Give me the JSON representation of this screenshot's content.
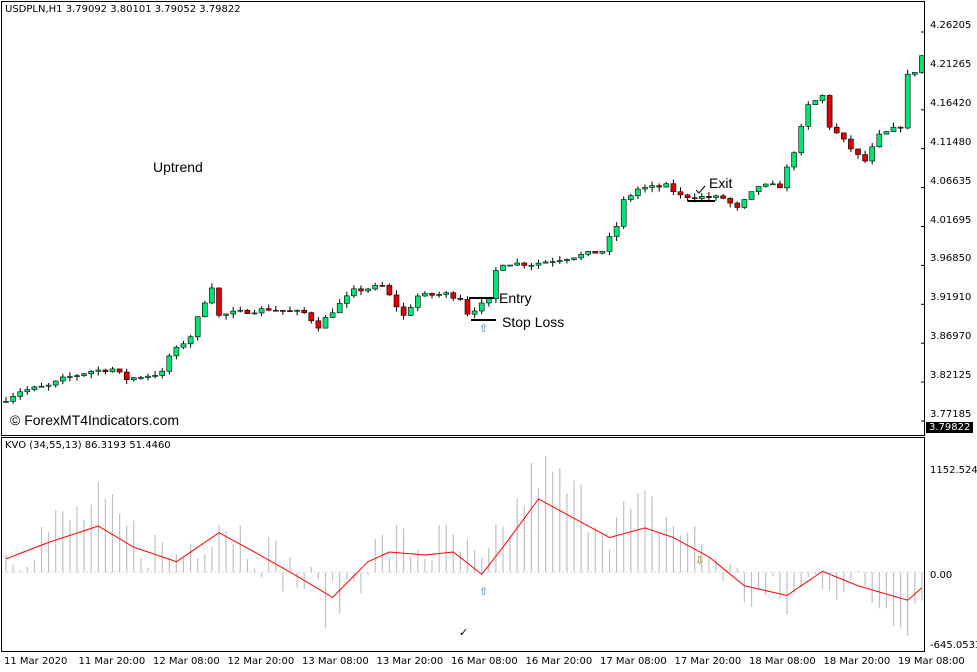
{
  "main_header": "USDPLN,H1  3.79092 3.80101 3.79052 3.79822",
  "indicator_header": "KVO (34,55,13)  86.3193 51.4460",
  "watermark": "© ForexMT4Indicators.com",
  "annotations": {
    "uptrend": "Uptrend",
    "entry": "Entry",
    "stop_loss": "Stop Loss",
    "exit": "Exit"
  },
  "price_axis": [
    "4.26205",
    "4.21265",
    "4.16420",
    "4.11480",
    "4.06635",
    "4.01695",
    "3.96850",
    "3.91910",
    "3.86970",
    "3.82125",
    "3.77185"
  ],
  "current_price": "3.79822",
  "indicator_axis": {
    "max": "1152.5245",
    "zero": "0.00",
    "min": "-645.0533"
  },
  "time_axis": [
    "11 Mar 2020",
    "11 Mar 20:00",
    "12 Mar 08:00",
    "12 Mar 20:00",
    "13 Mar 08:00",
    "13 Mar 20:00",
    "16 Mar 08:00",
    "16 Mar 20:00",
    "17 Mar 08:00",
    "17 Mar 20:00",
    "18 Mar 08:00",
    "18 Mar 20:00",
    "19 Mar 08:00"
  ],
  "colors": {
    "bull": "#00e676",
    "bear": "#e00000",
    "signal": "#ff0000",
    "histogram": "#c0c0c0"
  },
  "chart_data": {
    "type": "candlestick",
    "bars": 130,
    "price_range": [
      3.77185,
      4.26205
    ],
    "close_anchors": [
      [
        0,
        3.7996
      ],
      [
        2,
        3.8097
      ],
      [
        6,
        3.816
      ],
      [
        8,
        3.8248
      ],
      [
        12,
        3.8349
      ],
      [
        15,
        3.8374
      ],
      [
        17,
        3.8248
      ],
      [
        22,
        3.8324
      ],
      [
        23,
        3.8538
      ],
      [
        26,
        3.879
      ],
      [
        28,
        3.9231
      ],
      [
        29,
        3.942
      ],
      [
        30,
        3.9042
      ],
      [
        32,
        3.908
      ],
      [
        37,
        3.913
      ],
      [
        42,
        3.908
      ],
      [
        44,
        3.8916
      ],
      [
        46,
        3.9105
      ],
      [
        49,
        3.9357
      ],
      [
        53,
        3.942
      ],
      [
        55,
        3.9168
      ],
      [
        56,
        3.9042
      ],
      [
        58,
        3.9294
      ],
      [
        62,
        3.9319
      ],
      [
        64,
        3.9269
      ],
      [
        65,
        3.908
      ],
      [
        68,
        3.9231
      ],
      [
        69,
        3.9609
      ],
      [
        70,
        3.971
      ],
      [
        74,
        3.9697
      ],
      [
        78,
        3.976
      ],
      [
        84,
        3.9861
      ],
      [
        86,
        4.0176
      ],
      [
        87,
        4.0491
      ],
      [
        89,
        4.0642
      ],
      [
        93,
        4.068
      ],
      [
        95,
        4.0554
      ],
      [
        101,
        4.0529
      ],
      [
        103,
        4.039
      ],
      [
        106,
        4.068
      ],
      [
        109,
        4.068
      ],
      [
        111,
        4.1121
      ],
      [
        113,
        4.1688
      ],
      [
        115,
        4.1814
      ],
      [
        116,
        4.1436
      ],
      [
        118,
        4.1247
      ],
      [
        120,
        4.1058
      ],
      [
        121,
        4.0995
      ],
      [
        123,
        4.131
      ],
      [
        126,
        4.1436
      ],
      [
        127,
        4.2066
      ],
      [
        128,
        4.2129
      ],
      [
        129,
        4.2318
      ]
    ],
    "kvo_range": [
      -645.0533,
      1152.5245
    ],
    "signal_anchors": [
      [
        0,
        123
      ],
      [
        6,
        273
      ],
      [
        13,
        422
      ],
      [
        18,
        229
      ],
      [
        24,
        97
      ],
      [
        30,
        361
      ],
      [
        35,
        185
      ],
      [
        41,
        -35
      ],
      [
        46,
        -229
      ],
      [
        51,
        97
      ],
      [
        54,
        185
      ],
      [
        59,
        158
      ],
      [
        63,
        185
      ],
      [
        67,
        -18
      ],
      [
        70,
        229
      ],
      [
        75,
        669
      ],
      [
        80,
        493
      ],
      [
        85,
        317
      ],
      [
        90,
        405
      ],
      [
        94,
        317
      ],
      [
        99,
        141
      ],
      [
        104,
        -123
      ],
      [
        110,
        -211
      ],
      [
        115,
        9
      ],
      [
        120,
        -123
      ],
      [
        127,
        -255
      ],
      [
        129,
        -141
      ]
    ]
  }
}
